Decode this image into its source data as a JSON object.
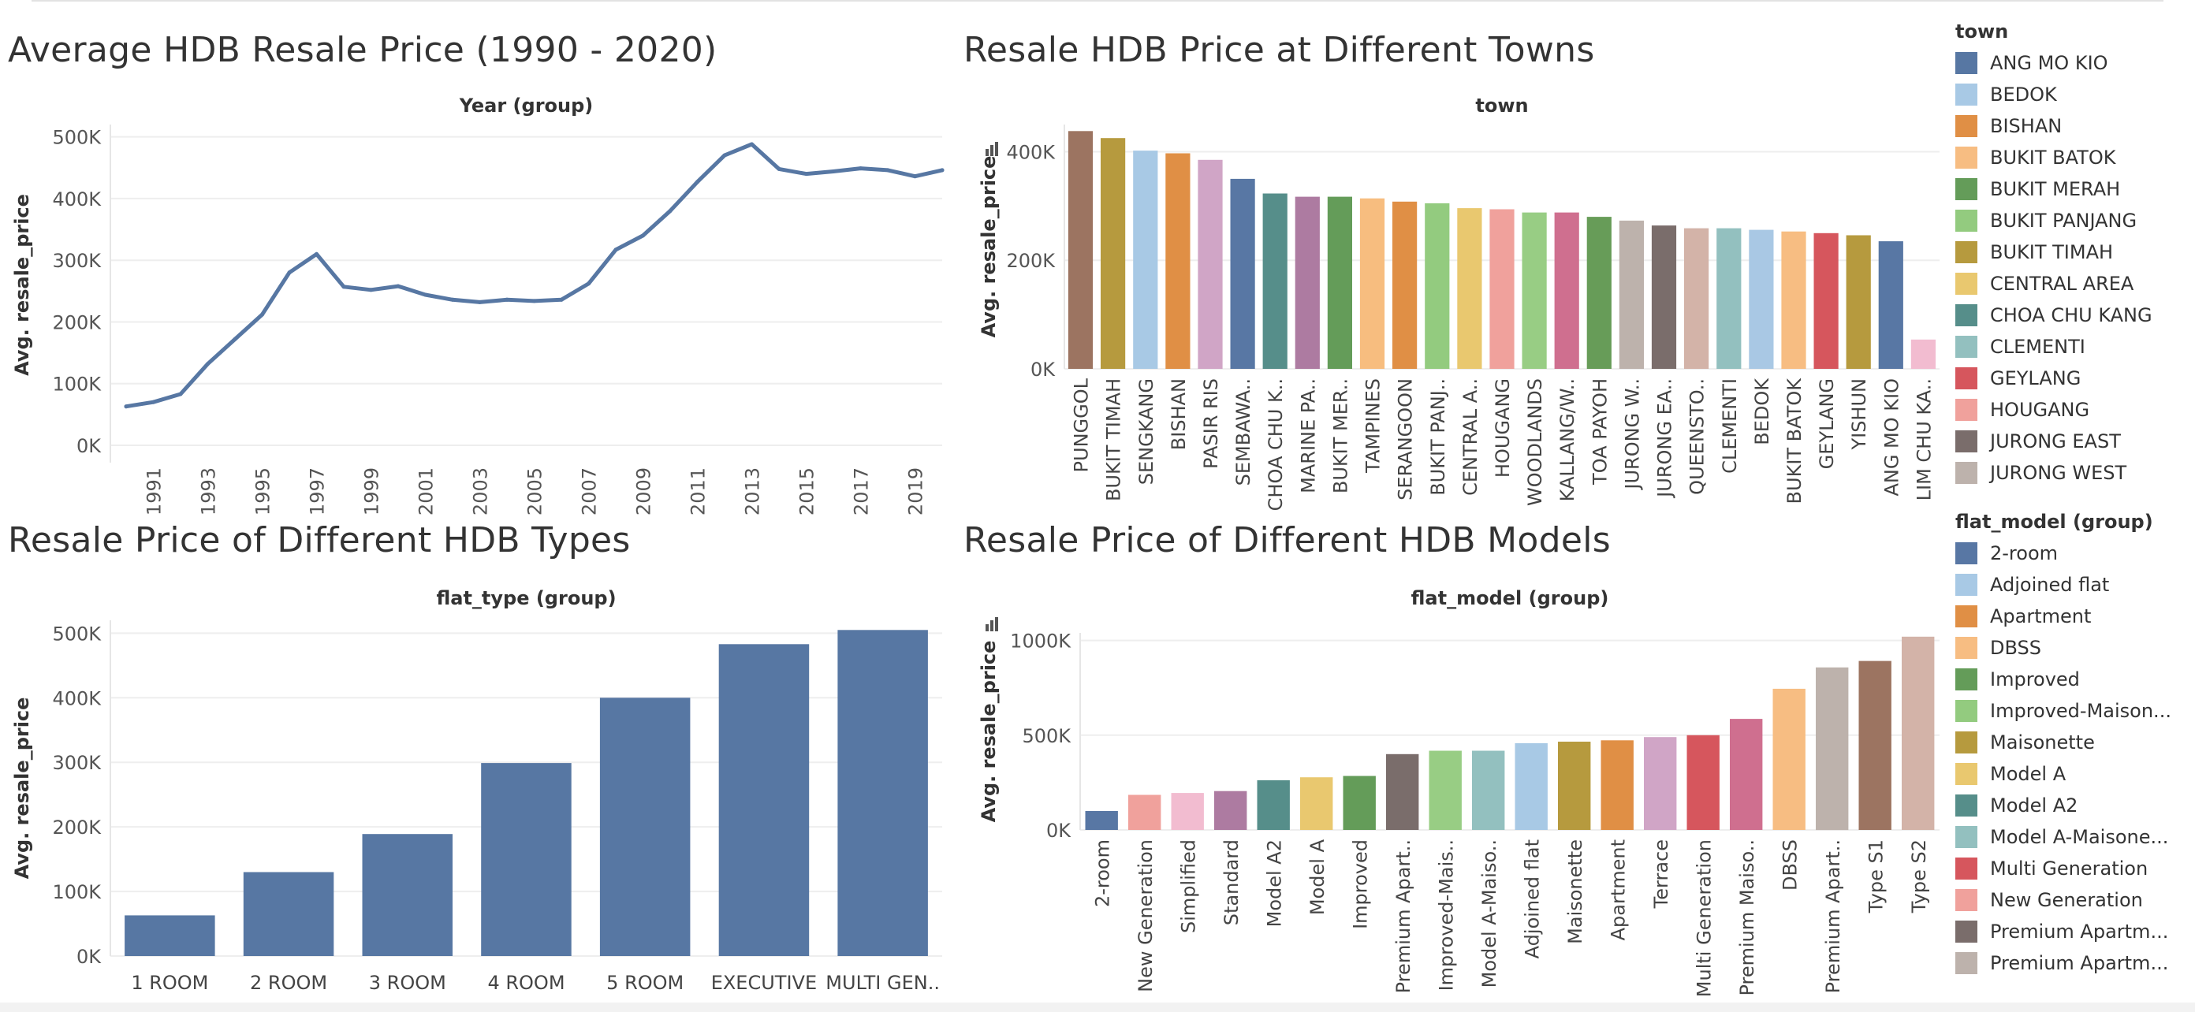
{
  "titles": {
    "line": "Average HDB Resale Price (1990 - 2020)",
    "towns": "Resale HDB Price at Different Towns",
    "types": "Resale Price of Different HDB Types",
    "models": "Resale Price of Different HDB Models"
  },
  "chart_data": [
    {
      "type": "line",
      "title": "Average HDB Resale Price (1990 - 2020)",
      "header": "Year (group)",
      "xlabel": "",
      "ylabel": "Avg. resale_price",
      "x": [
        1990,
        1991,
        1992,
        1993,
        1994,
        1995,
        1996,
        1997,
        1998,
        1999,
        2000,
        2001,
        2002,
        2003,
        2004,
        2005,
        2006,
        2007,
        2008,
        2009,
        2010,
        2011,
        2012,
        2013,
        2014,
        2015,
        2016,
        2017,
        2018,
        2019,
        2020
      ],
      "values": [
        63000,
        70000,
        83000,
        132000,
        172000,
        212000,
        280000,
        310000,
        257000,
        252000,
        258000,
        244000,
        236000,
        232000,
        236000,
        234000,
        236000,
        262000,
        317000,
        340000,
        380000,
        427000,
        470000,
        488000,
        448000,
        440000,
        444000,
        449000,
        446000,
        436000,
        446000
      ],
      "x_ticks": [
        "1991",
        "1993",
        "1995",
        "1997",
        "1999",
        "2001",
        "2003",
        "2005",
        "2007",
        "2009",
        "2011",
        "2013",
        "2015",
        "2017",
        "2019"
      ],
      "y_ticks": [
        "0K",
        "100K",
        "200K",
        "300K",
        "400K",
        "500K"
      ],
      "ylim": [
        0,
        520000
      ],
      "color": "#5777a3",
      "grid": "horizontal"
    },
    {
      "type": "bar",
      "title": "Resale HDB Price at Different Towns",
      "header": "town",
      "ylabel": "Avg. resale_price",
      "categories": [
        "PUNGGOL",
        "BUKIT TIMAH",
        "SENGKANG",
        "BISHAN",
        "PASIR RIS",
        "SEMBAWA..",
        "CHOA CHU K..",
        "MARINE PA..",
        "BUKIT MER..",
        "TAMPINES",
        "SERANGOON",
        "BUKIT PANJ..",
        "CENTRAL A..",
        "HOUGANG",
        "WOODLANDS",
        "KALLANG/W..",
        "TOA PAYOH",
        "JURONG W..",
        "JURONG EA..",
        "QUEENSTO..",
        "CLEMENTI",
        "BEDOK",
        "BUKIT BATOK",
        "GEYLANG",
        "YISHUN",
        "ANG MO KIO",
        "LIM CHU KA.."
      ],
      "values": [
        438000,
        425000,
        402000,
        397000,
        385000,
        350000,
        323000,
        317000,
        317000,
        314000,
        308000,
        305000,
        296000,
        294000,
        288000,
        288000,
        280000,
        273000,
        264000,
        259000,
        259000,
        256000,
        253000,
        250000,
        246000,
        235000,
        54000
      ],
      "colors": [
        "#9c7461",
        "#b69a3e",
        "#a8c9e5",
        "#e08f45",
        "#d0a5c6",
        "#5877a4",
        "#568e8a",
        "#ad7ba1",
        "#649c59",
        "#f7bd7f",
        "#e08f45",
        "#93cb7f",
        "#e9c86f",
        "#f0a19c",
        "#98cd84",
        "#cf6f8f",
        "#679c58",
        "#bdb2ac",
        "#7a6d6b",
        "#d3b3a8",
        "#93c0bf",
        "#a9c8e4",
        "#f7bd82",
        "#d6565d",
        "#b69a3e",
        "#5877a4",
        "#f2bcd0"
      ],
      "y_ticks": [
        "0K",
        "200K",
        "400K"
      ],
      "ylim": [
        0,
        450000
      ],
      "legend": {
        "title": "town",
        "entries": [
          "ANG MO KIO",
          "BEDOK",
          "BISHAN",
          "BUKIT BATOK",
          "BUKIT MERAH",
          "BUKIT PANJANG",
          "BUKIT TIMAH",
          "CENTRAL AREA",
          "CHOA CHU KANG",
          "CLEMENTI",
          "GEYLANG",
          "HOUGANG",
          "JURONG EAST",
          "JURONG WEST"
        ],
        "colors": [
          "#5777a3",
          "#a8c9e5",
          "#e08f45",
          "#f7bd82",
          "#649c59",
          "#93cb7f",
          "#b69a3e",
          "#e9c86f",
          "#568e8a",
          "#93c0bf",
          "#d6565d",
          "#f0a19c",
          "#7a6d6b",
          "#bdb2ac"
        ]
      }
    },
    {
      "type": "bar",
      "title": "Resale Price of Different HDB Types",
      "header": "flat_type (group)",
      "ylabel": "Avg. resale_price",
      "categories": [
        "1 ROOM",
        "2 ROOM",
        "3 ROOM",
        "4 ROOM",
        "5 ROOM",
        "EXECUTIVE",
        "MULTI GEN.."
      ],
      "values": [
        63000,
        130000,
        189000,
        299000,
        400000,
        483000,
        505000
      ],
      "y_ticks": [
        "0K",
        "100K",
        "200K",
        "300K",
        "400K",
        "500K"
      ],
      "ylim": [
        0,
        520000
      ],
      "color": "#5777a3"
    },
    {
      "type": "bar",
      "title": "Resale Price of Different HDB Models",
      "header": "flat_model (group)",
      "ylabel": "Avg. resale_price",
      "categories": [
        "2-room",
        "New Generation",
        "Simplified",
        "Standard",
        "Model A2",
        "Model A",
        "Improved",
        "Premium Apart..",
        "Improved-Mais..",
        "Model A-Maiso..",
        "Adjoined flat",
        "Maisonette",
        "Apartment",
        "Terrace",
        "Multi Generation",
        "Premium Maiso..",
        "DBSS",
        "Premium Apart..",
        "Type S1",
        "Type S2"
      ],
      "values": [
        100000,
        185000,
        195000,
        205000,
        262000,
        278000,
        285000,
        400000,
        418000,
        418000,
        458000,
        466000,
        473000,
        490000,
        500000,
        586000,
        745000,
        858000,
        892000,
        1020000
      ],
      "colors": [
        "#5877a4",
        "#f0a19c",
        "#f2bcd0",
        "#ad7ba1",
        "#568e8a",
        "#e9c86f",
        "#649c59",
        "#7a6d6b",
        "#98cd84",
        "#93c0bf",
        "#a8c9e5",
        "#b69a3e",
        "#e08f45",
        "#d0a5c6",
        "#d6565d",
        "#cf6f8f",
        "#f7bd82",
        "#bdb2ac",
        "#9c7461",
        "#d3b3a8"
      ],
      "y_ticks": [
        "0K",
        "500K",
        "1000K"
      ],
      "ylim": [
        0,
        1040000
      ],
      "legend": {
        "title": "flat_model (group)",
        "entries": [
          "2-room",
          "Adjoined flat",
          "Apartment",
          "DBSS",
          "Improved",
          "Improved-Maison...",
          "Maisonette",
          "Model A",
          "Model A2",
          "Model A-Maisone...",
          "Multi Generation",
          "New Generation",
          "Premium Apartm...",
          "Premium Apartm..."
        ],
        "colors": [
          "#5877a4",
          "#a8c9e5",
          "#e08f45",
          "#f7bd82",
          "#649c59",
          "#93cb7f",
          "#b69a3e",
          "#e9c86f",
          "#568e8a",
          "#93c0bf",
          "#d6565d",
          "#f0a19c",
          "#7a6d6b",
          "#bdb2ac"
        ]
      }
    }
  ]
}
